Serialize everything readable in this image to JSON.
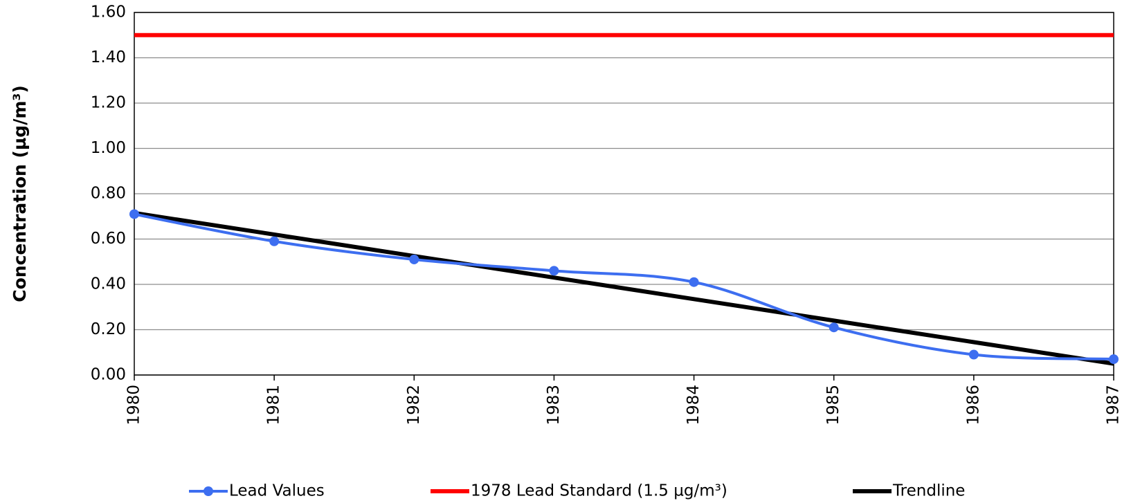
{
  "chart_data": {
    "type": "line",
    "y_label": "Concentration (µg/m³)",
    "categories": [
      "1980",
      "1981",
      "1982",
      "1983",
      "1984",
      "1985",
      "1986",
      "1987"
    ],
    "series": [
      {
        "name": "Lead Values",
        "color": "#3d6ef0",
        "values": [
          0.71,
          0.59,
          0.51,
          0.46,
          0.41,
          0.21,
          0.09,
          0.07
        ],
        "smooth": true,
        "markers": true
      },
      {
        "name": "1978 Lead Standard (1.5 µg/m³)",
        "color": "#ff0000",
        "values": [
          1.5,
          1.5,
          1.5,
          1.5,
          1.5,
          1.5,
          1.5,
          1.5
        ]
      },
      {
        "name": "Trendline",
        "color": "#000000",
        "values": [
          0.715,
          0.62,
          0.525,
          0.43,
          0.335,
          0.24,
          0.145,
          0.05
        ]
      }
    ],
    "ylim": [
      0,
      1.6
    ],
    "yticks": [
      {
        "value": 0,
        "label": "0.00"
      },
      {
        "value": 0.2,
        "label": "0.20"
      },
      {
        "value": 0.4,
        "label": "0.40"
      },
      {
        "value": 0.6,
        "label": "0.60"
      },
      {
        "value": 0.8,
        "label": "0.80"
      },
      {
        "value": 1.0,
        "label": "1.00"
      },
      {
        "value": 1.2,
        "label": "1.20"
      },
      {
        "value": 1.4,
        "label": "1.40"
      },
      {
        "value": 1.6,
        "label": "1.60"
      }
    ],
    "grid": true,
    "legend": "bottom"
  }
}
